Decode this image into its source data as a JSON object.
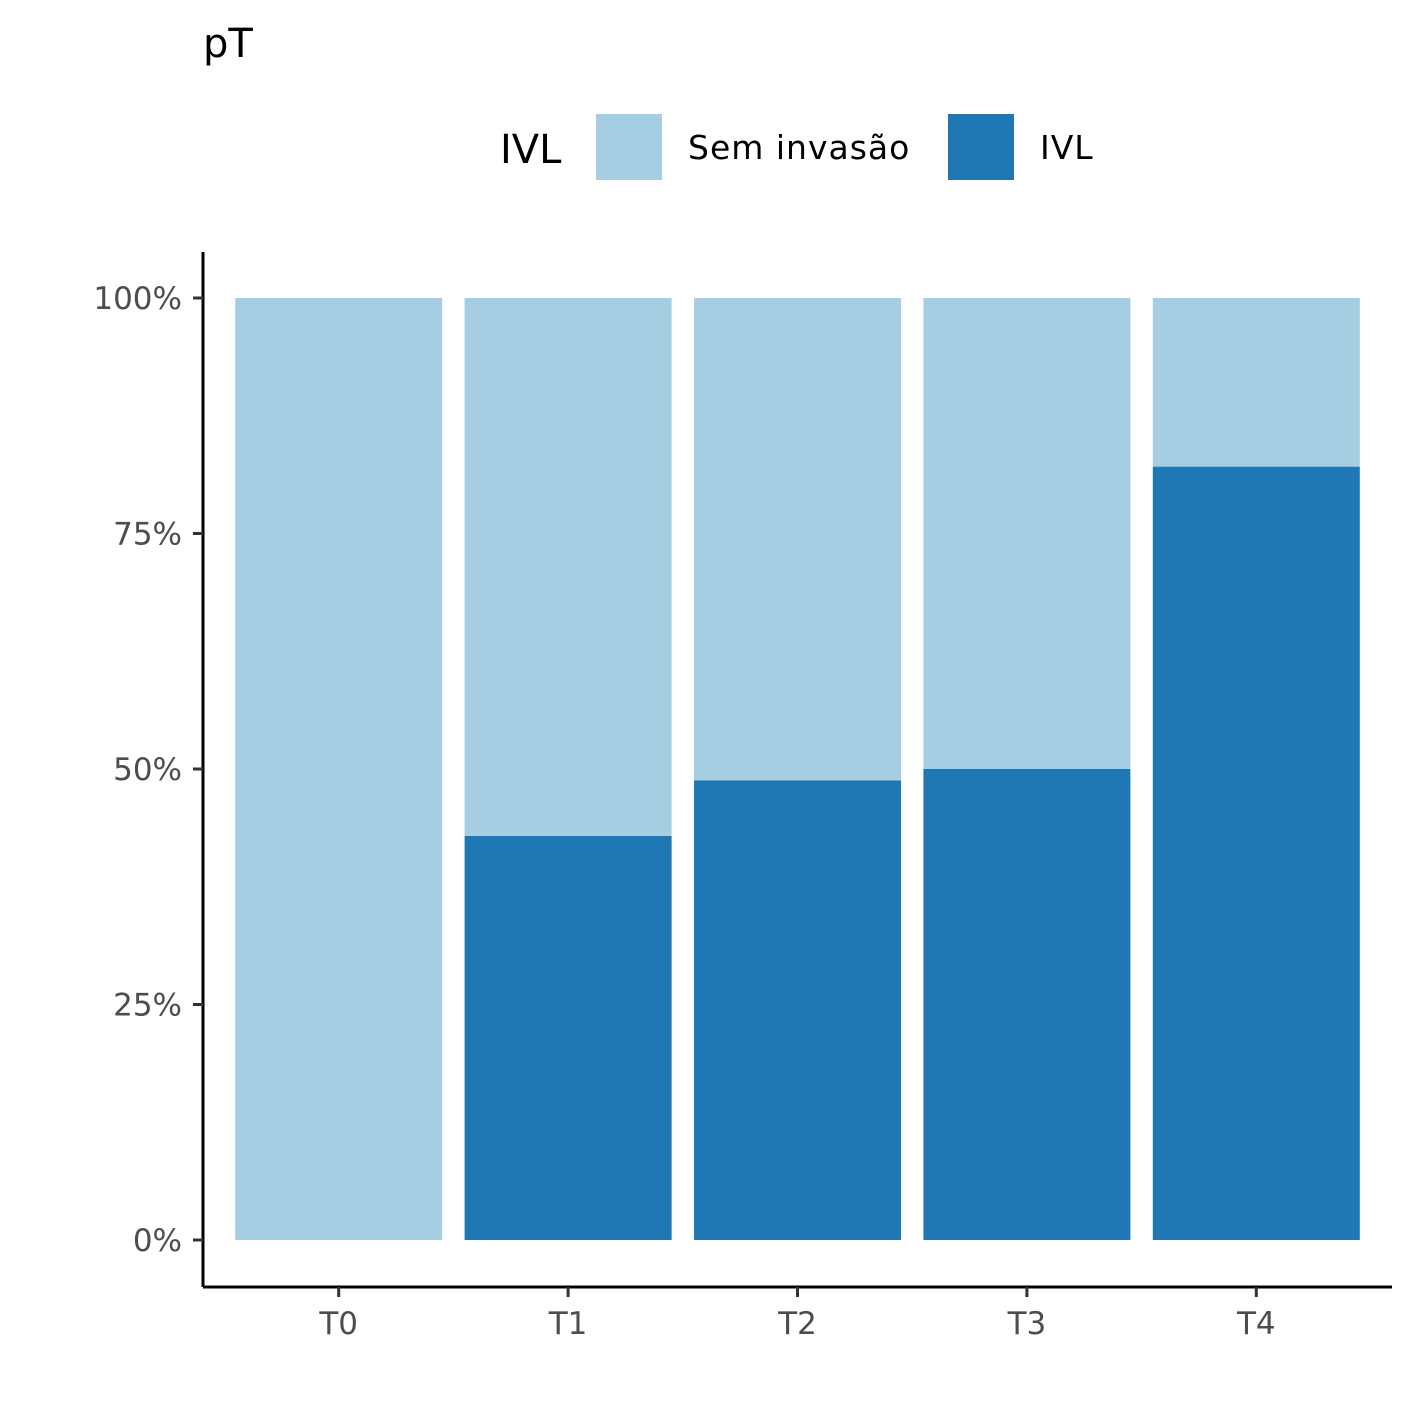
{
  "chart_data": {
    "type": "bar",
    "stacked": true,
    "title": "pT",
    "xlabel": "",
    "ylabel": "",
    "categories": [
      "T0",
      "T1",
      "T2",
      "T3",
      "T4"
    ],
    "series": [
      {
        "name": "Sem invasão",
        "color": "#a6cee3",
        "values": [
          1.0,
          0.571,
          0.512,
          0.5,
          0.179
        ]
      },
      {
        "name": "IVL",
        "color": "#1f78b4",
        "values": [
          0.0,
          0.429,
          0.488,
          0.5,
          0.821
        ]
      }
    ],
    "ylim": [
      0,
      1
    ],
    "yticks": [
      {
        "value": 0,
        "label": "0%"
      },
      {
        "value": 0.25,
        "label": "25%"
      },
      {
        "value": 0.5,
        "label": "50%"
      },
      {
        "value": 0.75,
        "label": "75%"
      },
      {
        "value": 1.0,
        "label": "100%"
      }
    ],
    "legend": {
      "title": "IVL",
      "position": "top",
      "items": [
        "Sem invasão",
        "IVL"
      ]
    },
    "grid": false
  }
}
